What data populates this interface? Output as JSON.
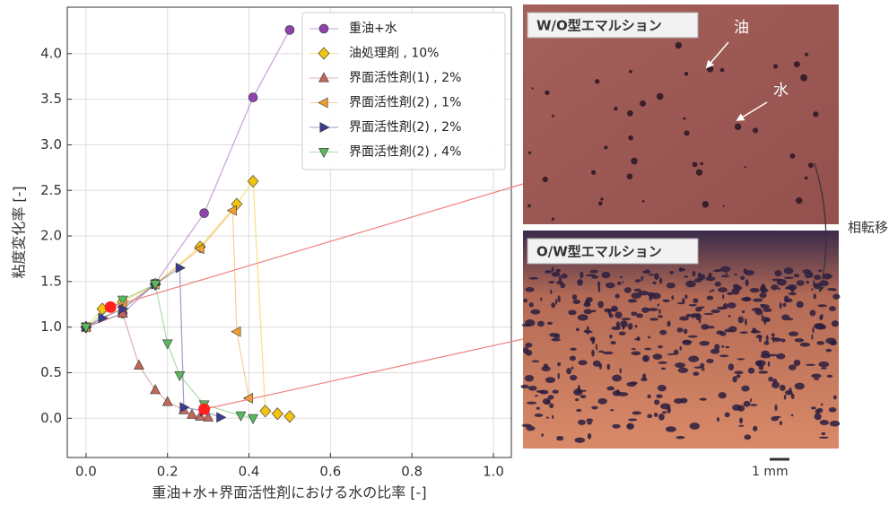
{
  "chart_data": {
    "type": "scatter",
    "xlabel": "重油+水+界面活性剤における水の比率 [-]",
    "ylabel": "粘度変化率 [-]",
    "xlim": [
      -0.046,
      1.044
    ],
    "ylim": [
      -0.43,
      4.51
    ],
    "xticks": [
      {
        "value": 0,
        "label": "0.0"
      },
      0.2,
      0.4,
      0.6,
      0.8,
      {
        "value": 1,
        "label": "1.0"
      }
    ],
    "yticks": [
      {
        "value": 0,
        "label": "0.0"
      },
      0.5,
      {
        "value": 1,
        "label": "1.0"
      },
      1.5,
      {
        "value": 2,
        "label": "2.0"
      },
      2.5,
      {
        "value": 3,
        "label": "3.0"
      },
      3.5,
      {
        "value": 4,
        "label": "4.0"
      }
    ],
    "grid": true,
    "legend": "upper center",
    "series": [
      {
        "name": "重油+水",
        "color": "#8e44ad",
        "marker": "circle",
        "x": [
          0,
          0.09,
          0.17,
          0.29,
          0.41,
          0.5
        ],
        "values": [
          1.0,
          1.15,
          1.48,
          2.25,
          3.52,
          4.26
        ]
      },
      {
        "name": "油処理剤 , 10%",
        "color": "#f1c40f",
        "marker": "diamond",
        "x": [
          0,
          0.04,
          0.09,
          0.17,
          0.28,
          0.37,
          0.41,
          0.44,
          0.47,
          0.5
        ],
        "values": [
          1.0,
          1.2,
          1.28,
          1.47,
          1.88,
          2.35,
          2.6,
          0.08,
          0.05,
          0.02
        ]
      },
      {
        "name": "界面活性剤(1) , 2%",
        "color": "#c0675a",
        "marker": "triangle-up",
        "x": [
          0,
          0.09,
          0.13,
          0.17,
          0.2,
          0.24,
          0.26,
          0.28,
          0.3
        ],
        "values": [
          1.0,
          1.15,
          0.58,
          0.31,
          0.18,
          0.09,
          0.04,
          0.02,
          0.01
        ]
      },
      {
        "name": "界面活性剤(2) , 1%",
        "color": "#f0a030",
        "marker": "triangle-left",
        "x": [
          0,
          0.09,
          0.17,
          0.28,
          0.36,
          0.37,
          0.4
        ],
        "values": [
          1.0,
          1.22,
          1.47,
          1.86,
          2.28,
          0.95,
          0.22
        ]
      },
      {
        "name": "界面活性剤(2) , 2%",
        "color": "#3b3b8f",
        "marker": "triangle-right",
        "x": [
          0,
          0.04,
          0.09,
          0.17,
          0.23,
          0.24,
          0.29,
          0.33
        ],
        "values": [
          1.0,
          1.1,
          1.2,
          1.47,
          1.65,
          0.12,
          0.08,
          0.01
        ]
      },
      {
        "name": "界面活性剤(2) , 4%",
        "color": "#5cb85c",
        "marker": "triangle-down",
        "x": [
          0,
          0.09,
          0.17,
          0.2,
          0.23,
          0.29,
          0.38,
          0.41
        ],
        "values": [
          1.0,
          1.3,
          1.47,
          0.82,
          0.47,
          0.15,
          0.03,
          0.0
        ]
      }
    ],
    "highlights": {
      "color": "#ff2020",
      "x": [
        0.06,
        0.29
      ],
      "values": [
        1.22,
        0.1
      ]
    }
  },
  "annotations": {
    "top_image": "W/O型エマルション",
    "bottom_image": "O/W型エマルション",
    "oil": "油",
    "water": "水",
    "transition": "相転移",
    "scale": "1 mm"
  }
}
